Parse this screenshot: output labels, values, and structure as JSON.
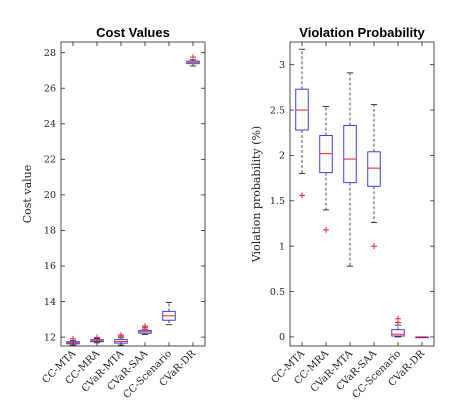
{
  "chart_data": [
    {
      "type": "boxplot",
      "title": "Cost Values",
      "ylabel": "Cost value",
      "ylim": [
        11.5,
        28.6
      ],
      "yticks": [
        12,
        14,
        16,
        18,
        20,
        22,
        24,
        26,
        28
      ],
      "categories": [
        "CC-MTA",
        "CC-MRA",
        "CVaR-MTA",
        "CVaR-SAA",
        "CC-Scenario",
        "CVaR-DR"
      ],
      "boxes": [
        {
          "whislo": 11.55,
          "q1": 11.62,
          "med": 11.68,
          "q3": 11.74,
          "whishi": 11.8,
          "fliers": [
            11.9
          ]
        },
        {
          "whislo": 11.68,
          "q1": 11.74,
          "med": 11.79,
          "q3": 11.85,
          "whishi": 11.92,
          "fliers": [
            11.98
          ]
        },
        {
          "whislo": 11.55,
          "q1": 11.66,
          "med": 11.75,
          "q3": 11.86,
          "whishi": 11.96,
          "fliers": [
            12.05,
            12.12
          ]
        },
        {
          "whislo": 12.15,
          "q1": 12.22,
          "med": 12.3,
          "q3": 12.38,
          "whishi": 12.45,
          "fliers": [
            12.55,
            12.62
          ]
        },
        {
          "whislo": 12.7,
          "q1": 12.95,
          "med": 13.2,
          "q3": 13.45,
          "whishi": 13.95,
          "fliers": []
        },
        {
          "whislo": 27.25,
          "q1": 27.38,
          "med": 27.46,
          "q3": 27.53,
          "whishi": 27.6,
          "fliers": [
            27.75
          ]
        }
      ]
    },
    {
      "type": "boxplot",
      "title": "Violation Probability",
      "ylabel": "Violation probability (%)",
      "ylim": [
        -0.1,
        3.25
      ],
      "yticks": [
        0,
        0.5,
        1,
        1.5,
        2,
        2.5,
        3
      ],
      "categories": [
        "CC-MTA",
        "CC-MRA",
        "CVaR-MTA",
        "CVaR-SAA",
        "CC-Scenario",
        "CVaR-DR"
      ],
      "boxes": [
        {
          "whislo": 1.8,
          "q1": 2.28,
          "med": 2.5,
          "q3": 2.73,
          "whishi": 3.17,
          "fliers": [
            1.56
          ]
        },
        {
          "whislo": 1.4,
          "q1": 1.81,
          "med": 2.02,
          "q3": 2.22,
          "whishi": 2.54,
          "fliers": [
            1.18
          ]
        },
        {
          "whislo": 0.78,
          "q1": 1.7,
          "med": 1.96,
          "q3": 2.33,
          "whishi": 2.91,
          "fliers": []
        },
        {
          "whislo": 1.26,
          "q1": 1.66,
          "med": 1.86,
          "q3": 2.04,
          "whishi": 2.56,
          "fliers": [
            1.0
          ]
        },
        {
          "whislo": 0.0,
          "q1": 0.01,
          "med": 0.03,
          "q3": 0.08,
          "whishi": 0.13,
          "fliers": [
            0.16,
            0.2
          ]
        },
        {
          "whislo": 0.0,
          "q1": 0.0,
          "med": 0.0,
          "q3": 0.0,
          "whishi": 0.0,
          "fliers": []
        }
      ]
    }
  ],
  "colors": {
    "box": "#2b2bd6",
    "median": "#e0242a",
    "flier": "#e0242a",
    "whisker": "#222222",
    "axis": "#222222"
  }
}
